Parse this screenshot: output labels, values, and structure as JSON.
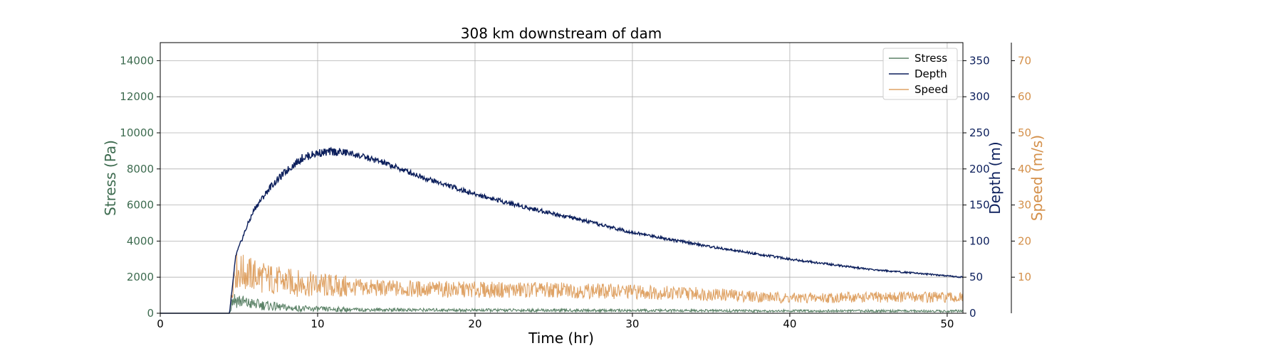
{
  "chart_data": {
    "type": "line",
    "title": "308 km downstream of dam",
    "xlabel": "Time (hr)",
    "xlim": [
      0,
      51
    ],
    "xticks": [
      0,
      10,
      20,
      30,
      40,
      50
    ],
    "grid": true,
    "legend_position": "top-right",
    "axes": {
      "stress": {
        "label": "Stress (Pa)",
        "side": "left",
        "ylim": [
          0,
          15000
        ],
        "ticks": [
          0,
          2000,
          4000,
          6000,
          8000,
          10000,
          12000,
          14000
        ],
        "color": "#3d6b4f"
      },
      "depth": {
        "label": "Depth (m)",
        "side": "right",
        "ylim": [
          0,
          375
        ],
        "ticks": [
          0,
          50,
          100,
          150,
          200,
          250,
          300,
          350
        ],
        "color": "#0c1f5c"
      },
      "speed": {
        "label": "Speed (m/s)",
        "side": "right-outer",
        "ylim": [
          0,
          75
        ],
        "ticks": [
          10,
          20,
          30,
          40,
          50,
          60,
          70
        ],
        "color": "#d4904a"
      }
    },
    "series": [
      {
        "name": "Stress",
        "axis": "stress",
        "color": "#5b8267",
        "x": [
          0,
          4.4,
          4.6,
          5.0,
          5.5,
          6.0,
          6.5,
          7.0,
          7.5,
          8.0,
          9,
          10,
          12,
          15,
          20,
          25,
          30,
          35,
          40,
          45,
          51
        ],
        "y": [
          0,
          0,
          800,
          700,
          550,
          500,
          450,
          400,
          350,
          300,
          260,
          230,
          200,
          190,
          170,
          160,
          150,
          140,
          130,
          130,
          120
        ]
      },
      {
        "name": "Depth",
        "axis": "depth",
        "color": "#0c1f5c",
        "x": [
          0,
          4.4,
          4.8,
          5.5,
          6,
          7,
          8,
          9,
          10,
          11,
          12,
          13,
          14,
          15,
          17,
          20,
          23,
          26,
          30,
          35,
          40,
          45,
          51
        ],
        "y": [
          0,
          0,
          80,
          120,
          145,
          175,
          197,
          215,
          222,
          224,
          222,
          216,
          210,
          202,
          186,
          165,
          148,
          133,
          112,
          92,
          75,
          61,
          50
        ]
      },
      {
        "name": "Speed",
        "axis": "speed",
        "color": "#dfa366",
        "x": [
          0,
          4.4,
          4.7,
          5.5,
          6.5,
          7.5,
          9,
          10,
          12,
          15,
          20,
          25,
          30,
          35,
          40,
          45,
          48,
          51
        ],
        "y": [
          0,
          0,
          12,
          11,
          10,
          9,
          8.2,
          7.8,
          7.2,
          6.8,
          6.5,
          6.4,
          6.0,
          5.3,
          4.2,
          4.4,
          4.6,
          4.2
        ]
      }
    ]
  }
}
